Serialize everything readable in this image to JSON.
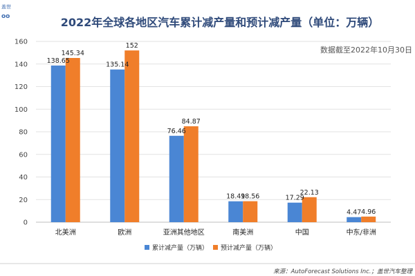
{
  "logo": {
    "top": "盖世",
    "bottom": "oo"
  },
  "header": {
    "title": "2022年全球各地区汽车累计减产量和预计减产量（单位：万辆）",
    "note": "数据截至2022年10月30日"
  },
  "footer": {
    "source": "来源：AutoForecast Solutions Inc.；盖世汽车整理"
  },
  "colors": {
    "series1": "#4a86d4",
    "series2": "#f07e2a",
    "title": "#2f4a7a"
  },
  "chart_data": {
    "type": "bar",
    "title": "2022年全球各地区汽车累计减产量和预计减产量（单位：万辆）",
    "xlabel": "",
    "ylabel": "",
    "ylim": [
      0,
      160
    ],
    "yticks": [
      0,
      20,
      40,
      60,
      80,
      100,
      120,
      140,
      160
    ],
    "grid": true,
    "legend_position": "bottom-center",
    "categories": [
      "北美洲",
      "欧洲",
      "亚洲其他地区",
      "南美洲",
      "中国",
      "中东/非洲"
    ],
    "series": [
      {
        "name": "累计减产量（万辆）",
        "values": [
          138.65,
          135.14,
          76.46,
          18.49,
          17.29,
          4.47
        ]
      },
      {
        "name": "预计减产量（万辆）",
        "values": [
          145.34,
          152,
          84.87,
          18.56,
          22.13,
          4.96
        ]
      }
    ]
  }
}
